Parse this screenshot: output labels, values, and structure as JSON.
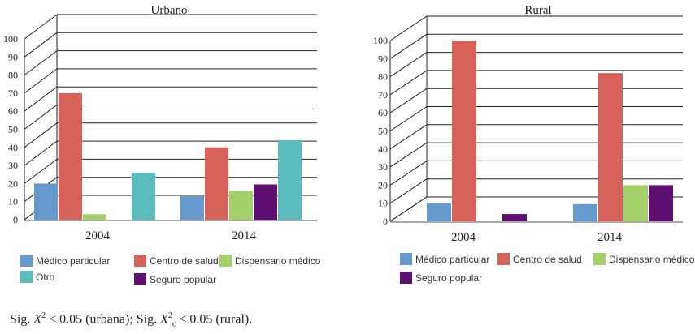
{
  "colors": {
    "medico": "#6699cc",
    "centro": "#d6625a",
    "dispensario": "#a3d06b",
    "seguro": "#5e1070",
    "otro": "#5bbcbd"
  },
  "legend_labels": {
    "medico": "Médico particular",
    "centro": "Centro de salud",
    "dispensario": "Dispensario médico",
    "otro": "Otro",
    "seguro": "Seguro popular"
  },
  "chart_data": [
    {
      "type": "bar",
      "title": "Urbano",
      "categories": [
        "2004",
        "2014"
      ],
      "ylim": [
        0,
        100
      ],
      "yticks": [
        "0",
        "10",
        "20",
        "30",
        "40",
        "50",
        "60",
        "70",
        "80",
        "90",
        "100"
      ],
      "grid": true,
      "legend_position": "bottom",
      "series": [
        {
          "name": "Médico particular",
          "key": "medico",
          "values": [
            20,
            13
          ]
        },
        {
          "name": "Centro de salud",
          "key": "centro",
          "values": [
            70,
            40
          ]
        },
        {
          "name": "Dispensario médico",
          "key": "dispensario",
          "values": [
            3,
            16
          ]
        },
        {
          "name": "Seguro popular",
          "key": "seguro",
          "values": [
            0,
            19.5
          ]
        },
        {
          "name": "Otro",
          "key": "otro",
          "values": [
            26,
            44
          ]
        }
      ]
    },
    {
      "type": "bar",
      "title": "Rural",
      "categories": [
        "2004",
        "2014"
      ],
      "ylim": [
        0,
        100
      ],
      "yticks": [
        "0",
        "10",
        "20",
        "30",
        "40",
        "50",
        "60",
        "70",
        "80",
        "90",
        "100"
      ],
      "grid": true,
      "legend_position": "bottom",
      "series": [
        {
          "name": "Médico particular",
          "key": "medico",
          "values": [
            10,
            9.5
          ]
        },
        {
          "name": "Centro de salud",
          "key": "centro",
          "values": [
            100,
            82
          ]
        },
        {
          "name": "Dispensario médico",
          "key": "dispensario",
          "values": [
            0,
            20
          ]
        },
        {
          "name": "Seguro popular",
          "key": "seguro",
          "values": [
            4,
            20
          ]
        }
      ]
    }
  ],
  "caption": {
    "prefix": "Sig. ",
    "var1": "X",
    "sup1": "2",
    "mid1": " < 0.05 (urbana); Sig. ",
    "var2": "X",
    "sup2": "2",
    "sub2": "c",
    "mid2": " < 0.05 (rural)."
  }
}
